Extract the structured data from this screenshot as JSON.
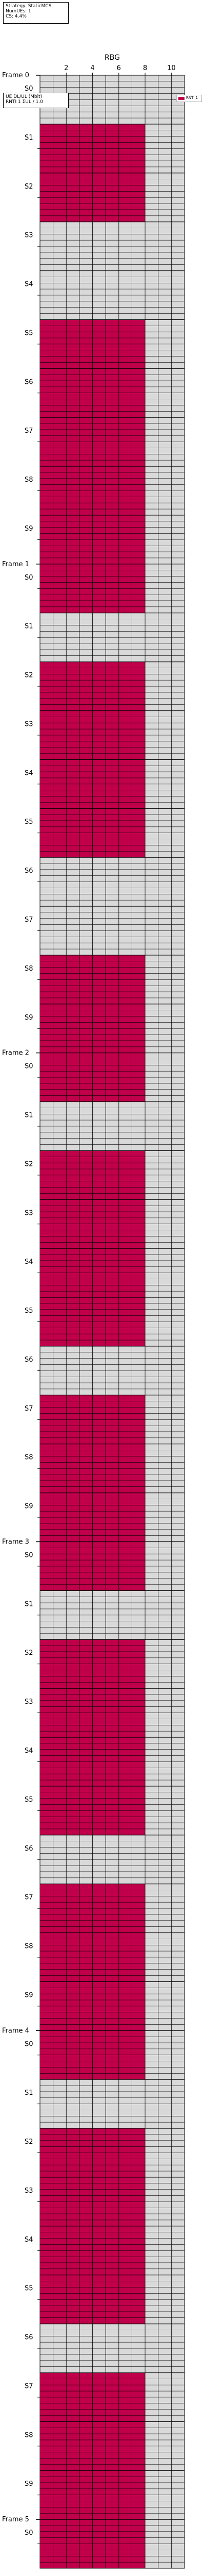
{
  "info_top": {
    "line1": "Strategy: StaticMCS",
    "line2": "NumUEs: 1",
    "line3": "CS: 4.4%"
  },
  "info_mid": {
    "line1": "UE   DL/UL (Mbit)",
    "line2": "RNTI 1  ΣUL / 1.0"
  },
  "legend": {
    "entries": [
      {
        "label": "RNTI 1",
        "color": "#c0004a"
      }
    ]
  },
  "chart_data": {
    "type": "heatmap",
    "xlabel": "RBG",
    "x_ticks": [
      2,
      4,
      6,
      8,
      10
    ],
    "x_range": [
      0,
      11
    ],
    "alloc_rbg_count": 8,
    "colors": {
      "allocated": "#c0004a",
      "free": "#d9d9d9",
      "grid": "#000000"
    },
    "frames": [
      {
        "label": "Frame 0",
        "subframes": [
          {
            "label": "S0",
            "allocated": false
          },
          {
            "label": "S1",
            "allocated": true
          },
          {
            "label": "S2",
            "allocated": true
          },
          {
            "label": "S3",
            "allocated": false
          },
          {
            "label": "S4",
            "allocated": false
          },
          {
            "label": "S5",
            "allocated": true
          },
          {
            "label": "S6",
            "allocated": true
          },
          {
            "label": "S7",
            "allocated": true
          },
          {
            "label": "S8",
            "allocated": true
          },
          {
            "label": "S9",
            "allocated": true
          }
        ]
      },
      {
        "label": "Frame 1",
        "subframes": [
          {
            "label": "S0",
            "allocated": true
          },
          {
            "label": "S1",
            "allocated": false
          },
          {
            "label": "S2",
            "allocated": true
          },
          {
            "label": "S3",
            "allocated": true
          },
          {
            "label": "S4",
            "allocated": true
          },
          {
            "label": "S5",
            "allocated": true
          },
          {
            "label": "S6",
            "allocated": false
          },
          {
            "label": "S7",
            "allocated": false
          },
          {
            "label": "S8",
            "allocated": true
          },
          {
            "label": "S9",
            "allocated": true
          }
        ]
      },
      {
        "label": "Frame 2",
        "subframes": [
          {
            "label": "S0",
            "allocated": true
          },
          {
            "label": "S1",
            "allocated": false
          },
          {
            "label": "S2",
            "allocated": true
          },
          {
            "label": "S3",
            "allocated": true
          },
          {
            "label": "S4",
            "allocated": true
          },
          {
            "label": "S5",
            "allocated": true
          },
          {
            "label": "S6",
            "allocated": false
          },
          {
            "label": "S7",
            "allocated": true
          },
          {
            "label": "S8",
            "allocated": true
          },
          {
            "label": "S9",
            "allocated": true
          }
        ]
      },
      {
        "label": "Frame 3",
        "subframes": [
          {
            "label": "S0",
            "allocated": true
          },
          {
            "label": "S1",
            "allocated": false
          },
          {
            "label": "S2",
            "allocated": true
          },
          {
            "label": "S3",
            "allocated": true
          },
          {
            "label": "S4",
            "allocated": true
          },
          {
            "label": "S5",
            "allocated": true
          },
          {
            "label": "S6",
            "allocated": false
          },
          {
            "label": "S7",
            "allocated": true
          },
          {
            "label": "S8",
            "allocated": true
          },
          {
            "label": "S9",
            "allocated": true
          }
        ]
      },
      {
        "label": "Frame 4",
        "subframes": [
          {
            "label": "S0",
            "allocated": true
          },
          {
            "label": "S1",
            "allocated": false
          },
          {
            "label": "S2",
            "allocated": true
          },
          {
            "label": "S3",
            "allocated": true
          },
          {
            "label": "S4",
            "allocated": true
          },
          {
            "label": "S5",
            "allocated": true
          },
          {
            "label": "S6",
            "allocated": false
          },
          {
            "label": "S7",
            "allocated": true
          },
          {
            "label": "S8",
            "allocated": true
          },
          {
            "label": "S9",
            "allocated": true
          }
        ]
      },
      {
        "label": "Frame 5",
        "subframes": [
          {
            "label": "S0",
            "allocated": true
          }
        ]
      }
    ]
  }
}
